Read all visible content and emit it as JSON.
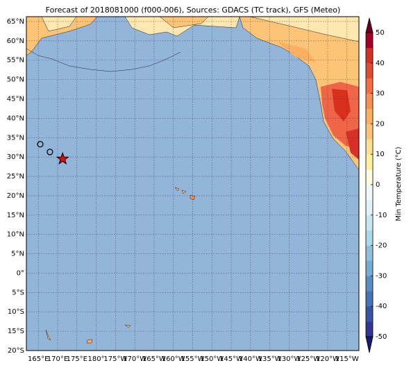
{
  "map": {
    "title": "Forecast of 2018081000 (f000-006), Sources: GDACS (TC track), GFS (Meteo)",
    "lon_range": [
      161.9,
      248.1
    ],
    "lat_range": [
      -20,
      66.25
    ],
    "lat_ticks": [
      {
        "value": 65,
        "label": "65°N"
      },
      {
        "value": 60,
        "label": "60°N"
      },
      {
        "value": 55,
        "label": "55°N"
      },
      {
        "value": 50,
        "label": "50°N"
      },
      {
        "value": 45,
        "label": "45°N"
      },
      {
        "value": 40,
        "label": "40°N"
      },
      {
        "value": 35,
        "label": "35°N"
      },
      {
        "value": 30,
        "label": "30°N"
      },
      {
        "value": 25,
        "label": "25°N"
      },
      {
        "value": 20,
        "label": "20°N"
      },
      {
        "value": 15,
        "label": "15°N"
      },
      {
        "value": 10,
        "label": "10°N"
      },
      {
        "value": 5,
        "label": "5°N"
      },
      {
        "value": 0,
        "label": "0°"
      },
      {
        "value": -5,
        "label": "5°S"
      },
      {
        "value": -10,
        "label": "10°S"
      },
      {
        "value": -15,
        "label": "15°S"
      },
      {
        "value": -20,
        "label": "20°S"
      }
    ],
    "lon_ticks": [
      {
        "value": 165,
        "label": "165°E"
      },
      {
        "value": 170,
        "label": "170°E"
      },
      {
        "value": 175,
        "label": "175°E"
      },
      {
        "value": 180,
        "label": "180°"
      },
      {
        "value": 185,
        "label": "175°W"
      },
      {
        "value": 190,
        "label": "170°W"
      },
      {
        "value": 195,
        "label": "165°W"
      },
      {
        "value": 200,
        "label": "160°W"
      },
      {
        "value": 205,
        "label": "155°W"
      },
      {
        "value": 210,
        "label": "150°W"
      },
      {
        "value": 215,
        "label": "145°W"
      },
      {
        "value": 220,
        "label": "140°W"
      },
      {
        "value": 225,
        "label": "135°W"
      },
      {
        "value": 230,
        "label": "130°W"
      },
      {
        "value": 235,
        "label": "125°W"
      },
      {
        "value": 240,
        "label": "120°W"
      },
      {
        "value": 245,
        "label": "115°W"
      }
    ],
    "track": [
      {
        "lon": 165.5,
        "lat": 33.3,
        "marker": "circle"
      },
      {
        "lon": 168.0,
        "lat": 31.3,
        "marker": "circle"
      },
      {
        "lon": 171.3,
        "lat": 29.5,
        "marker": "star"
      }
    ],
    "colorbar": {
      "label": "Min Temperature (°C)",
      "range": [
        -50,
        50
      ],
      "ticks": [
        -50,
        -40,
        -30,
        -20,
        -10,
        0,
        10,
        20,
        30,
        40,
        50
      ],
      "colors": [
        "#313695",
        "#3a54a4",
        "#4575b4",
        "#5a8dc4",
        "#74add1",
        "#91bfdb",
        "#abd9e9",
        "#c7e6f1",
        "#e0f3f8",
        "#f0f9fa",
        "#fffbdf",
        "#ffeda0",
        "#fee090",
        "#fdc376",
        "#fdae61",
        "#f98e52",
        "#f46d43",
        "#e34a33",
        "#d73027",
        "#a50026"
      ]
    }
  }
}
